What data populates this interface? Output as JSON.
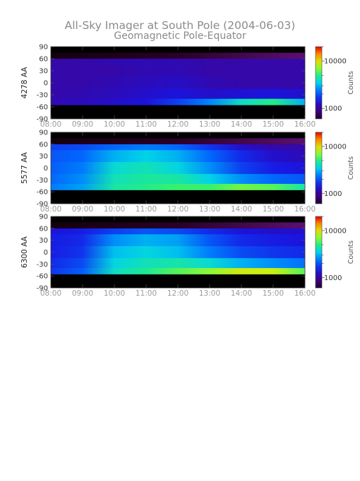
{
  "figure": {
    "title": "All-Sky Imager at South Pole (2004-06-03)",
    "subtitle": "Geomagnetic Pole-Equator"
  },
  "chart_data": [
    {
      "type": "heatmap",
      "ylabel": "4278 AA",
      "x_range": [
        "08:00",
        "16:00"
      ],
      "x_ticks": [
        "08:00",
        "09:00",
        "10:00",
        "11:00",
        "12:00",
        "13:00",
        "14:00",
        "15:00",
        "16:00"
      ],
      "ylim": [
        -90,
        90
      ],
      "y_ticks": [
        "90",
        "60",
        "30",
        "0",
        "-30",
        "-60",
        "-90"
      ],
      "valid_latitude_range": [
        -55,
        60
      ],
      "colorbar": {
        "label": "Counts",
        "scale": "log",
        "ticks": [
          "10000",
          "1000"
        ]
      },
      "rows": [
        {
          "lat": 60,
          "values": [
            1100,
            1100,
            1150,
            1150,
            1150,
            1100,
            1100,
            1100,
            1100
          ]
        },
        {
          "lat": 30,
          "values": [
            1100,
            1100,
            1100,
            1150,
            1150,
            1100,
            1100,
            1100,
            1100
          ]
        },
        {
          "lat": 0,
          "values": [
            1100,
            1100,
            1150,
            1200,
            1250,
            1150,
            1100,
            1100,
            1100
          ]
        },
        {
          "lat": -30,
          "values": [
            1100,
            1150,
            1200,
            1300,
            1400,
            1300,
            1350,
            1400,
            1300
          ]
        },
        {
          "lat": -50,
          "values": [
            1150,
            1200,
            1300,
            1400,
            1800,
            2500,
            4000,
            5000,
            3000
          ]
        }
      ]
    },
    {
      "type": "heatmap",
      "ylabel": "5577 AA",
      "x_range": [
        "08:00",
        "16:00"
      ],
      "x_ticks": [
        "08:00",
        "09:00",
        "10:00",
        "11:00",
        "12:00",
        "13:00",
        "14:00",
        "15:00",
        "16:00"
      ],
      "ylim": [
        -90,
        90
      ],
      "y_ticks": [
        "90",
        "60",
        "30",
        "0",
        "-30",
        "-60",
        "-90"
      ],
      "valid_latitude_range": [
        -55,
        60
      ],
      "colorbar": {
        "label": "Counts",
        "scale": "log",
        "ticks": [
          "10000",
          "1000"
        ]
      },
      "rows": [
        {
          "lat": 60,
          "values": [
            1800,
            1900,
            2200,
            2400,
            2200,
            1700,
            1300,
            1100,
            1100
          ]
        },
        {
          "lat": 30,
          "values": [
            2000,
            2200,
            3000,
            3500,
            3000,
            2200,
            1600,
            1300,
            1200
          ]
        },
        {
          "lat": 0,
          "values": [
            2100,
            2400,
            3800,
            4200,
            3600,
            2600,
            1800,
            1500,
            1400
          ]
        },
        {
          "lat": -30,
          "values": [
            2200,
            2600,
            4200,
            4600,
            4500,
            3500,
            2600,
            2200,
            2000
          ]
        },
        {
          "lat": -50,
          "values": [
            2400,
            2800,
            4500,
            5000,
            5500,
            5500,
            6500,
            6000,
            4500
          ]
        }
      ]
    },
    {
      "type": "heatmap",
      "ylabel": "6300 AA",
      "x_range": [
        "08:00",
        "16:00"
      ],
      "x_ticks": [
        "08:00",
        "09:00",
        "10:00",
        "11:00",
        "12:00",
        "13:00",
        "14:00",
        "15:00",
        "16:00"
      ],
      "ylim": [
        -90,
        90
      ],
      "y_ticks": [
        "90",
        "60",
        "30",
        "0",
        "-30",
        "-60",
        "-90"
      ],
      "valid_latitude_range": [
        -55,
        60
      ],
      "colorbar": {
        "label": "Counts",
        "scale": "log",
        "ticks": [
          "10000",
          "1000"
        ]
      },
      "rows": [
        {
          "lat": 60,
          "values": [
            1400,
            1500,
            1800,
            2000,
            1900,
            1600,
            1400,
            1300,
            1300
          ]
        },
        {
          "lat": 30,
          "values": [
            1500,
            1600,
            2600,
            3000,
            2800,
            2000,
            1600,
            1500,
            1400
          ]
        },
        {
          "lat": 0,
          "values": [
            1500,
            1700,
            3200,
            3600,
            3200,
            2400,
            1900,
            1700,
            1600
          ]
        },
        {
          "lat": -30,
          "values": [
            1600,
            1900,
            3600,
            4200,
            4400,
            3800,
            3000,
            2600,
            2300
          ]
        },
        {
          "lat": -50,
          "values": [
            1700,
            2100,
            4000,
            4800,
            6000,
            7000,
            9000,
            8500,
            6000
          ]
        }
      ]
    }
  ]
}
